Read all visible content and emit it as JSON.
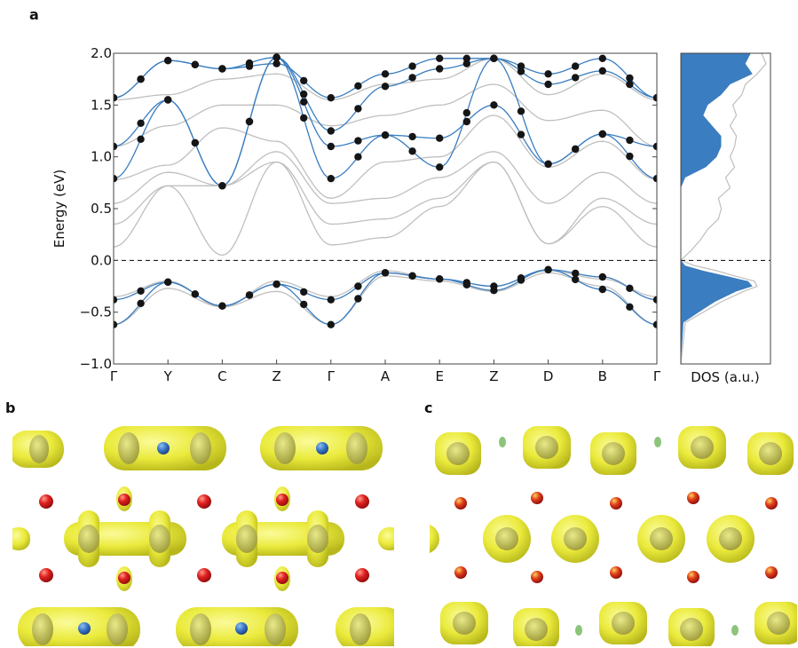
{
  "panels": {
    "a": "a",
    "b": "b",
    "c": "c"
  },
  "chart_data": [
    {
      "type": "line",
      "panel": "a",
      "ylabel": "Energy (eV)",
      "xlabel": "",
      "ylim": [
        -1.0,
        2.0
      ],
      "yticks": [
        "2.0",
        "1.5",
        "1.0",
        "0.5",
        "0.0",
        "−0.5",
        "−1.0"
      ],
      "ytick_values": [
        2.0,
        1.5,
        1.0,
        0.5,
        0.0,
        -0.5,
        -1.0
      ],
      "kpath": [
        "Γ",
        "Y",
        "C",
        "Z",
        "Γ",
        "A",
        "E",
        "Z",
        "D",
        "B",
        "Γ"
      ],
      "fermi_level": 0.0,
      "grid": false,
      "colors": {
        "dft": "#bfbfbf",
        "wannier": "#3a7dc0",
        "points": "#151515",
        "fermi": "#000000"
      },
      "series": [
        {
          "group": "dft",
          "values": [
            0.13,
            0.72,
            0.05,
            0.95,
            0.15,
            0.22,
            0.52,
            0.95,
            0.16,
            0.52,
            0.13
          ]
        },
        {
          "group": "dft",
          "values": [
            0.35,
            0.72,
            0.72,
            0.95,
            0.35,
            0.4,
            0.6,
            0.95,
            0.16,
            0.6,
            0.35
          ]
        },
        {
          "group": "dft",
          "values": [
            0.55,
            0.85,
            0.72,
            1.05,
            0.55,
            0.6,
            0.8,
            1.05,
            0.55,
            0.85,
            0.55
          ]
        },
        {
          "group": "dft",
          "values": [
            0.78,
            0.92,
            1.28,
            1.15,
            0.6,
            0.95,
            1.0,
            1.4,
            0.9,
            1.15,
            0.78
          ]
        },
        {
          "group": "dft",
          "values": [
            1.1,
            1.3,
            1.5,
            1.5,
            1.3,
            1.4,
            1.5,
            1.7,
            1.35,
            1.45,
            1.1
          ]
        },
        {
          "group": "dft",
          "values": [
            1.55,
            1.6,
            1.75,
            1.8,
            1.55,
            1.7,
            1.75,
            1.95,
            1.6,
            1.8,
            1.55
          ]
        },
        {
          "group": "dft",
          "values": [
            -0.35,
            -0.2,
            -0.45,
            -0.2,
            -0.35,
            -0.1,
            -0.18,
            -0.25,
            -0.1,
            -0.18,
            -0.35
          ]
        },
        {
          "group": "dft",
          "values": [
            -0.62,
            -0.27,
            -0.45,
            -0.3,
            -0.62,
            -0.15,
            -0.2,
            -0.3,
            -0.12,
            -0.25,
            -0.62
          ]
        },
        {
          "group": "wannier",
          "values": [
            -0.38,
            -0.21,
            -0.44,
            -0.23,
            -0.38,
            -0.12,
            -0.18,
            -0.25,
            -0.09,
            -0.16,
            -0.38
          ]
        },
        {
          "group": "wannier",
          "values": [
            -0.62,
            -0.21,
            -0.44,
            -0.23,
            -0.62,
            -0.12,
            -0.18,
            -0.29,
            -0.09,
            -0.28,
            -0.62
          ]
        },
        {
          "group": "wannier",
          "values": [
            0.79,
            1.55,
            0.72,
            1.96,
            0.79,
            1.21,
            1.18,
            1.5,
            0.93,
            1.22,
            1.1
          ]
        },
        {
          "group": "wannier",
          "values": [
            1.1,
            1.55,
            0.72,
            1.96,
            1.1,
            1.21,
            0.9,
            1.95,
            0.93,
            1.22,
            0.79
          ]
        },
        {
          "group": "wannier",
          "values": [
            1.57,
            1.93,
            1.85,
            1.96,
            1.25,
            1.68,
            1.85,
            1.95,
            1.7,
            1.83,
            1.57
          ]
        },
        {
          "group": "wannier",
          "values": [
            1.57,
            1.93,
            1.85,
            1.9,
            1.57,
            1.8,
            1.95,
            1.95,
            1.8,
            1.95,
            1.57
          ]
        }
      ]
    },
    {
      "type": "area",
      "panel": "a-dos",
      "xlabel": "DOS (a.u.)",
      "ylim": [
        -1.0,
        2.0
      ],
      "colors": {
        "fill": "#3a7dc0",
        "outline": "#bfbfbf"
      },
      "energy": [
        -1.0,
        -0.6,
        -0.5,
        -0.4,
        -0.3,
        -0.25,
        -0.2,
        -0.15,
        -0.1,
        -0.05,
        0.0,
        0.1,
        0.2,
        0.3,
        0.4,
        0.5,
        0.6,
        0.7,
        0.8,
        0.9,
        1.0,
        1.1,
        1.2,
        1.3,
        1.4,
        1.5,
        1.6,
        1.7,
        1.8,
        1.9,
        2.0
      ],
      "dos_total": [
        0.0,
        0.05,
        0.25,
        0.45,
        0.7,
        0.85,
        0.82,
        0.6,
        0.4,
        0.15,
        0.0,
        0.12,
        0.22,
        0.3,
        0.42,
        0.45,
        0.42,
        0.55,
        0.5,
        0.6,
        0.55,
        0.6,
        0.62,
        0.55,
        0.62,
        0.58,
        0.68,
        0.72,
        0.85,
        0.95,
        0.9
      ],
      "dos_projected": [
        0.0,
        0.03,
        0.2,
        0.38,
        0.62,
        0.8,
        0.75,
        0.5,
        0.25,
        0.05,
        0.0,
        0.0,
        0.0,
        0.0,
        0.0,
        0.0,
        0.0,
        0.0,
        0.05,
        0.28,
        0.4,
        0.45,
        0.45,
        0.35,
        0.25,
        0.3,
        0.45,
        0.55,
        0.8,
        0.72,
        0.78
      ]
    }
  ],
  "structure_images": {
    "b": {
      "colors": {
        "isosurface": "#e8e83a",
        "oxygen": "#d61f1f",
        "cation": "#3a78c8"
      }
    },
    "c": {
      "colors": {
        "isosurface": "#e8e83a",
        "oxygen": "#d61f1f",
        "small_atom": "#8cc47a"
      }
    }
  }
}
